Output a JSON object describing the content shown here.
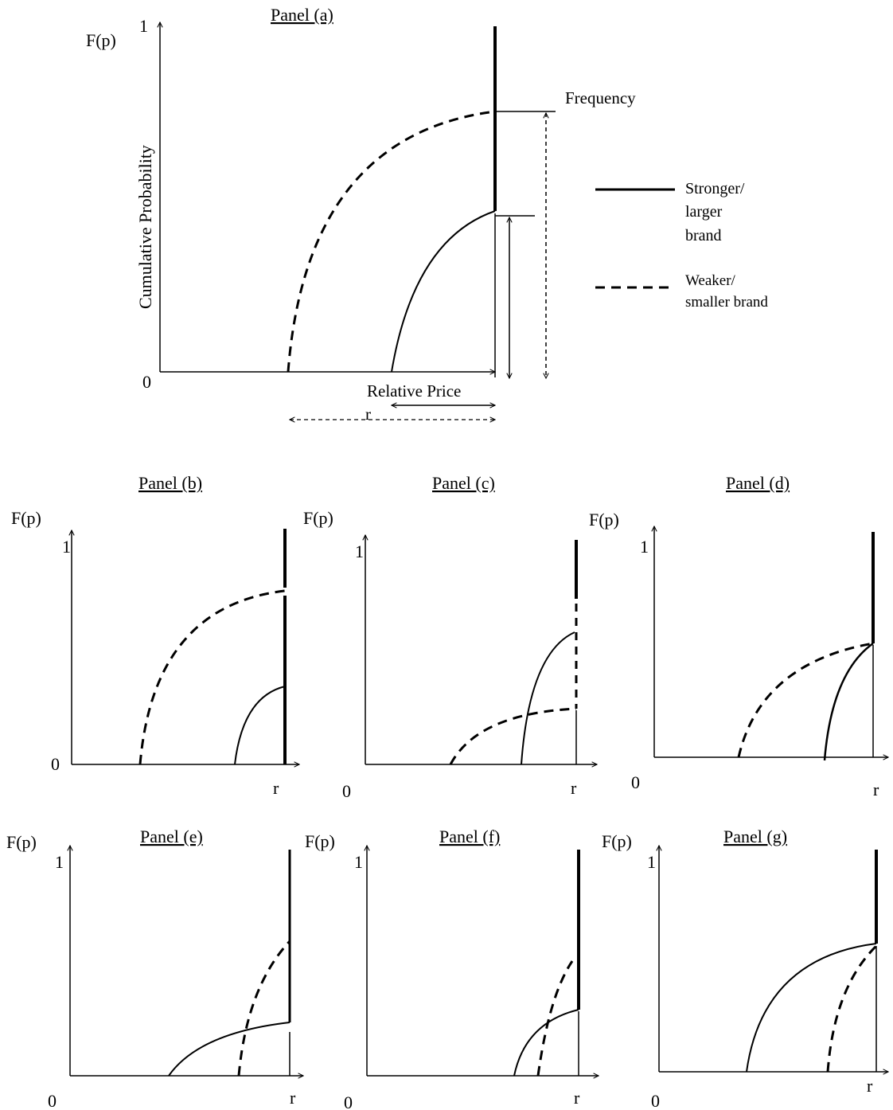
{
  "panels": {
    "a": {
      "title": "Panel (a)",
      "ylabel": "F(p)",
      "y_top": "1",
      "origin": "0",
      "yaxis_label": "Cumulative Probability",
      "xaxis_label": "Relative Price",
      "r_label": "r",
      "frequency_label": "Frequency"
    },
    "b": {
      "title": "Panel (b)",
      "ylabel": "F(p)",
      "y_top": "1",
      "origin": "0",
      "r_label": "r"
    },
    "c": {
      "title": "Panel (c)",
      "ylabel": "F(p)",
      "y_top": "1",
      "origin": "0",
      "r_label": "r"
    },
    "d": {
      "title": "Panel (d)",
      "ylabel": "F(p)",
      "y_top": "1",
      "origin": "0",
      "r_label": "r"
    },
    "e": {
      "title": "Panel (e)",
      "ylabel": "F(p)",
      "y_top": "1",
      "origin": "0",
      "r_label": "r"
    },
    "f": {
      "title": "Panel (f)",
      "ylabel": "F(p)",
      "y_top": "1",
      "origin": "0",
      "r_label": "r"
    },
    "g": {
      "title": "Panel (g)",
      "ylabel": "F(p)",
      "y_top": "1",
      "origin": "0",
      "r_label": "r"
    }
  },
  "legend": {
    "strong": {
      "line1": "Stronger/",
      "line2": "larger",
      "line3": "brand"
    },
    "weak": {
      "line1": "Weaker/",
      "line2": "smaller brand"
    }
  },
  "colors": {
    "ink": "#000000",
    "background": "#ffffff"
  }
}
